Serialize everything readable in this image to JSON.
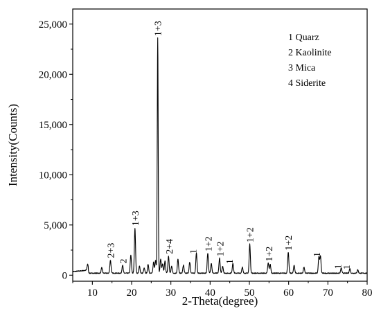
{
  "chart_data": {
    "type": "line",
    "title": "",
    "xlabel": "2-Theta(degree)",
    "ylabel": "Intensity(Counts)",
    "xlim": [
      5,
      80
    ],
    "ylim": [
      -600,
      26500
    ],
    "x_ticks": [
      10,
      20,
      30,
      40,
      50,
      60,
      70,
      80
    ],
    "x_tick_labels": [
      "10",
      "20",
      "30",
      "40",
      "50",
      "60",
      "70",
      "80"
    ],
    "y_ticks": [
      0,
      5000,
      10000,
      15000,
      20000,
      25000
    ],
    "y_tick_labels": [
      "0",
      "5,000",
      "10,000",
      "15,000",
      "20,000",
      "25,000"
    ],
    "grid": false,
    "legend_position": "top-right",
    "legend": [
      "1 Quarz",
      "2 Kaolinite",
      "3 Mica",
      "4 Siderite"
    ],
    "series": [
      {
        "peaks": [
          [
            8.8,
            600
          ],
          [
            12.4,
            550
          ],
          [
            14.6,
            1300
          ],
          [
            17.7,
            800
          ],
          [
            19.8,
            1800
          ],
          [
            20.85,
            4500
          ],
          [
            22.0,
            700
          ],
          [
            23.2,
            500
          ],
          [
            24.2,
            900
          ],
          [
            25.6,
            1100
          ],
          [
            26.1,
            1300
          ],
          [
            26.65,
            23400
          ],
          [
            27.4,
            1400
          ],
          [
            27.9,
            900
          ],
          [
            28.5,
            1200
          ],
          [
            29.4,
            1700
          ],
          [
            30.2,
            700
          ],
          [
            31.8,
            1400
          ],
          [
            33.2,
            800
          ],
          [
            34.8,
            1100
          ],
          [
            36.5,
            2000
          ],
          [
            39.4,
            2000
          ],
          [
            40.3,
            1000
          ],
          [
            42.4,
            1500
          ],
          [
            43.2,
            700
          ],
          [
            45.8,
            1000
          ],
          [
            48.2,
            600
          ],
          [
            50.1,
            2900
          ],
          [
            54.8,
            1000
          ],
          [
            55.3,
            900
          ],
          [
            59.9,
            2100
          ],
          [
            61.4,
            800
          ],
          [
            63.9,
            600
          ],
          [
            67.7,
            1600
          ],
          [
            68.1,
            1700
          ],
          [
            73.4,
            500
          ],
          [
            75.6,
            450
          ],
          [
            77.6,
            350
          ]
        ],
        "baseline": 200
      }
    ],
    "annotations": [
      {
        "text": "2+3",
        "x": 14.6,
        "y": 1500
      },
      {
        "text": "2",
        "x": 17.8,
        "y": 950
      },
      {
        "text": "1+3",
        "x": 20.85,
        "y": 4700
      },
      {
        "text": "1+3",
        "x": 26.65,
        "y": 23600
      },
      {
        "text": "2+4",
        "x": 29.5,
        "y": 1900
      },
      {
        "text": "1",
        "x": 36.5,
        "y": 2150
      },
      {
        "text": "1+2",
        "x": 39.5,
        "y": 2150
      },
      {
        "text": "1+2",
        "x": 42.5,
        "y": 1650
      },
      {
        "text": "1",
        "x": 45.8,
        "y": 1150
      },
      {
        "text": "1+2",
        "x": 50.1,
        "y": 3050
      },
      {
        "text": "1+2",
        "x": 54.9,
        "y": 1150
      },
      {
        "text": "1+2",
        "x": 59.9,
        "y": 2250
      },
      {
        "text": "1",
        "x": 68.0,
        "y": 1850
      },
      {
        "text": "1",
        "x": 73.4,
        "y": 650
      },
      {
        "text": "1",
        "x": 75.6,
        "y": 600
      }
    ]
  }
}
